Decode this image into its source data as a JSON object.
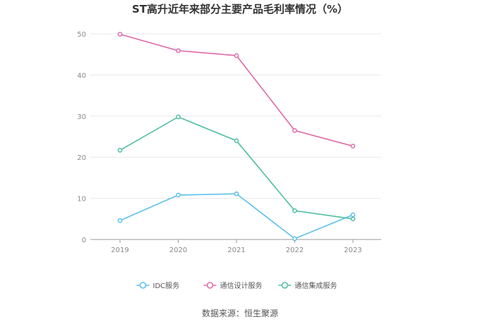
{
  "chart_data": {
    "type": "line",
    "title": "ST高升近年来部分主要产品毛利率情况（%）",
    "source": "数据来源：恒生聚源",
    "categories": [
      "2019",
      "2020",
      "2021",
      "2022",
      "2023"
    ],
    "ylim": [
      0,
      50
    ],
    "yticks": [
      0,
      10,
      20,
      30,
      40,
      50
    ],
    "grid": true,
    "legend_position": "bottom",
    "series": [
      {
        "name": "IDC服务",
        "color": "#5bc0eb",
        "values": [
          4.6,
          10.8,
          11.1,
          0.2,
          6.0
        ]
      },
      {
        "name": "通信设计服务",
        "color": "#e06aa8",
        "values": [
          49.9,
          45.9,
          44.7,
          26.5,
          22.7
        ]
      },
      {
        "name": "通信集成服务",
        "color": "#4dbf9f",
        "values": [
          21.7,
          29.8,
          24.0,
          7.0,
          5.0
        ]
      }
    ]
  }
}
